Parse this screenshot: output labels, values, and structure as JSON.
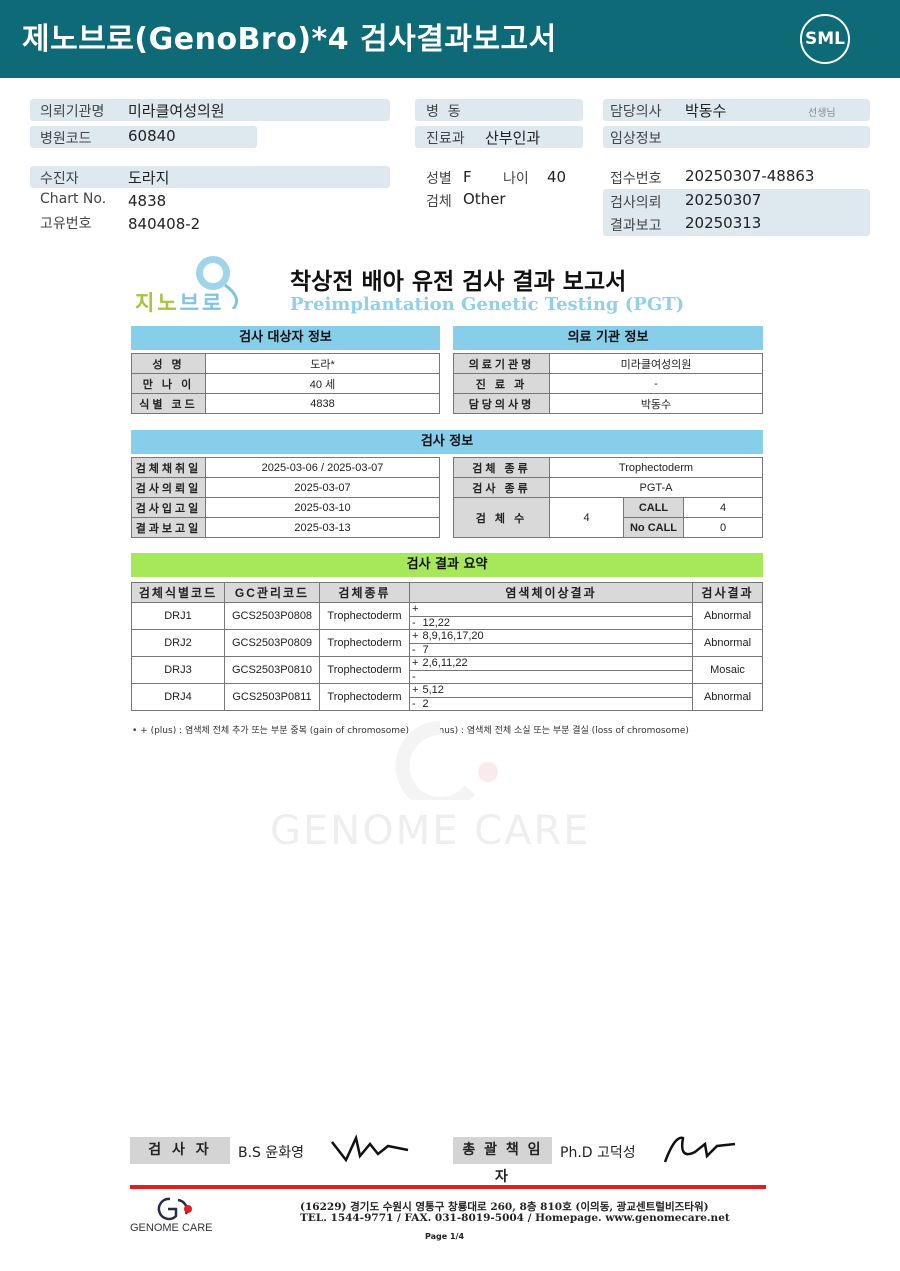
{
  "header": {
    "title": "제노브로(GenoBro)*4 검사결과보고서",
    "logo": "SML"
  },
  "info": {
    "institution_label": "의뢰기관명",
    "institution": "미라클여성의원",
    "hospital_code_label": "병원코드",
    "hospital_code": "60840",
    "ward_label": "병  동",
    "ward": "",
    "dept_label": "진료과",
    "dept": "산부인과",
    "doctor_label": "담당의사",
    "doctor": "박동수",
    "doctor_suffix": "선생님",
    "clinical_label": "임상정보",
    "patient_label": "수진자",
    "patient": "도라지",
    "chart_label": "Chart No.",
    "chart": "4838",
    "uid_label": "고유번호",
    "uid": "840408-2",
    "sex_label": "성별",
    "sex": "F",
    "age_label": "나이",
    "age": "40",
    "specimen_label": "검체",
    "specimen": "Other",
    "receipt_label": "접수번호",
    "receipt": "20250307-48863",
    "request_label": "검사의뢰",
    "request": "20250307",
    "report_label": "결과보고",
    "report": "20250313"
  },
  "doc": {
    "logo": "지노브로",
    "title": "착상전 배아 유전 검사 결과 보고서",
    "subtitle": "Preimplantation Genetic Testing (PGT)",
    "subject_header": "검사 대상자 정보",
    "inst_header": "의료 기관 정보",
    "test_header": "검사 정보",
    "summary_header": "검사 결과 요약",
    "subject": [
      [
        "성 명",
        "도라*"
      ],
      [
        "만 나 이",
        "40 세"
      ],
      [
        "식별 코드",
        "4838"
      ]
    ],
    "inst": [
      [
        "의료기관명",
        "미라클여성의원"
      ],
      [
        "진 료 과",
        "-"
      ],
      [
        "담당의사명",
        "박동수"
      ]
    ],
    "test_left": [
      [
        "검체채취일",
        "2025-03-06 / 2025-03-07"
      ],
      [
        "검사의뢰일",
        "2025-03-07"
      ],
      [
        "검사입고일",
        "2025-03-10"
      ],
      [
        "결과보고일",
        "2025-03-13"
      ]
    ],
    "test_right": {
      "specimen_type_label": "검체 종류",
      "specimen_type": "Trophectoderm",
      "test_type_label": "검사 종류",
      "test_type": "PGT-A",
      "count_label": "검 체 수",
      "count": "4",
      "call_label": "CALL",
      "call": "4",
      "nocall_label": "No CALL",
      "nocall": "0"
    },
    "summary_cols": [
      "검체식별코드",
      "GC관리코드",
      "검체종류",
      "염색체이상결과",
      "검사결과"
    ],
    "summary_rows": [
      {
        "id": "DRJ1",
        "gc": "GCS2503P0808",
        "type": "Trophectoderm",
        "plus": "",
        "minus": "12,22",
        "result": "Abnormal"
      },
      {
        "id": "DRJ2",
        "gc": "GCS2503P0809",
        "type": "Trophectoderm",
        "plus": "8,9,16,17,20",
        "minus": "7",
        "result": "Abnormal"
      },
      {
        "id": "DRJ3",
        "gc": "GCS2503P0810",
        "type": "Trophectoderm",
        "plus": "2,6,11,22",
        "minus": "",
        "result": "Mosaic"
      },
      {
        "id": "DRJ4",
        "gc": "GCS2503P0811",
        "type": "Trophectoderm",
        "plus": "5,12",
        "minus": "2",
        "result": "Abnormal"
      }
    ],
    "plus_sign": "+",
    "minus_sign": "-",
    "note": "• + (plus) : 염색체 전체 추가 또는 부분 중복 (gain of chromosome) , - (minus) : 염색체 전체 소실 또는 부분 결실 (loss of chromosome)",
    "watermark": "GENOME CARE"
  },
  "footer": {
    "tester_label": "검 사 자",
    "tester": "B.S 윤화영",
    "director_label": "총 괄 책 임 자",
    "director": "Ph.D 고덕성",
    "company": "GENOME CARE",
    "address": "(16229) 경기도 수원시 영통구 창룡대로 260, 8층 810호 (이의동, 광교센트럴비즈타워)",
    "contact": "TEL. 1544-9771 / FAX. 031-8019-5004 / Homepage. www.genomecare.net",
    "page": "Page 1/4"
  }
}
